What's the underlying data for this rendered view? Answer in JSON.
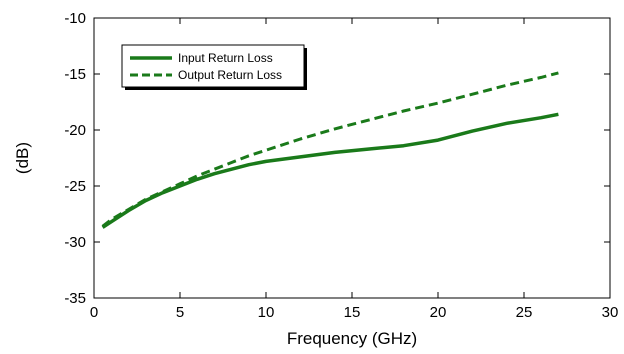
{
  "chart_data": {
    "type": "line",
    "title": "",
    "xlabel": "Frequency (GHz)",
    "ylabel": "(dB)",
    "xlim": [
      0,
      30
    ],
    "ylim": [
      -35,
      -10
    ],
    "xticks": [
      0,
      5,
      10,
      15,
      20,
      25,
      30
    ],
    "yticks": [
      -35,
      -30,
      -25,
      -20,
      -15,
      -10
    ],
    "xtick_labels": [
      "0",
      "5",
      "10",
      "15",
      "20",
      "25",
      "30"
    ],
    "ytick_labels": [
      "-35",
      "-30",
      "-25",
      "-20",
      "-15",
      "-10"
    ],
    "grid": false,
    "legend_position": "top-left",
    "series": [
      {
        "name": "Input Return Loss",
        "style": "solid",
        "color": "#1a7a1a",
        "x": [
          0.5,
          1,
          2,
          3,
          4,
          5,
          6,
          7,
          8,
          9,
          10,
          12,
          14,
          16,
          18,
          20,
          22,
          24,
          26,
          27
        ],
        "y": [
          -28.7,
          -28.2,
          -27.2,
          -26.3,
          -25.6,
          -25.0,
          -24.4,
          -23.9,
          -23.5,
          -23.1,
          -22.8,
          -22.4,
          -22.0,
          -21.7,
          -21.4,
          -20.9,
          -20.1,
          -19.4,
          -18.9,
          -18.6
        ]
      },
      {
        "name": "Output Return Loss",
        "style": "dashed",
        "color": "#1a7a1a",
        "x": [
          0.5,
          1,
          2,
          3,
          4,
          5,
          6,
          7,
          8,
          9,
          10,
          12,
          14,
          16,
          18,
          20,
          22,
          24,
          26,
          27
        ],
        "y": [
          -28.6,
          -28.0,
          -27.1,
          -26.2,
          -25.5,
          -24.8,
          -24.1,
          -23.5,
          -22.9,
          -22.3,
          -21.8,
          -20.8,
          -19.9,
          -19.1,
          -18.3,
          -17.6,
          -16.8,
          -16.0,
          -15.3,
          -14.9
        ]
      }
    ]
  }
}
